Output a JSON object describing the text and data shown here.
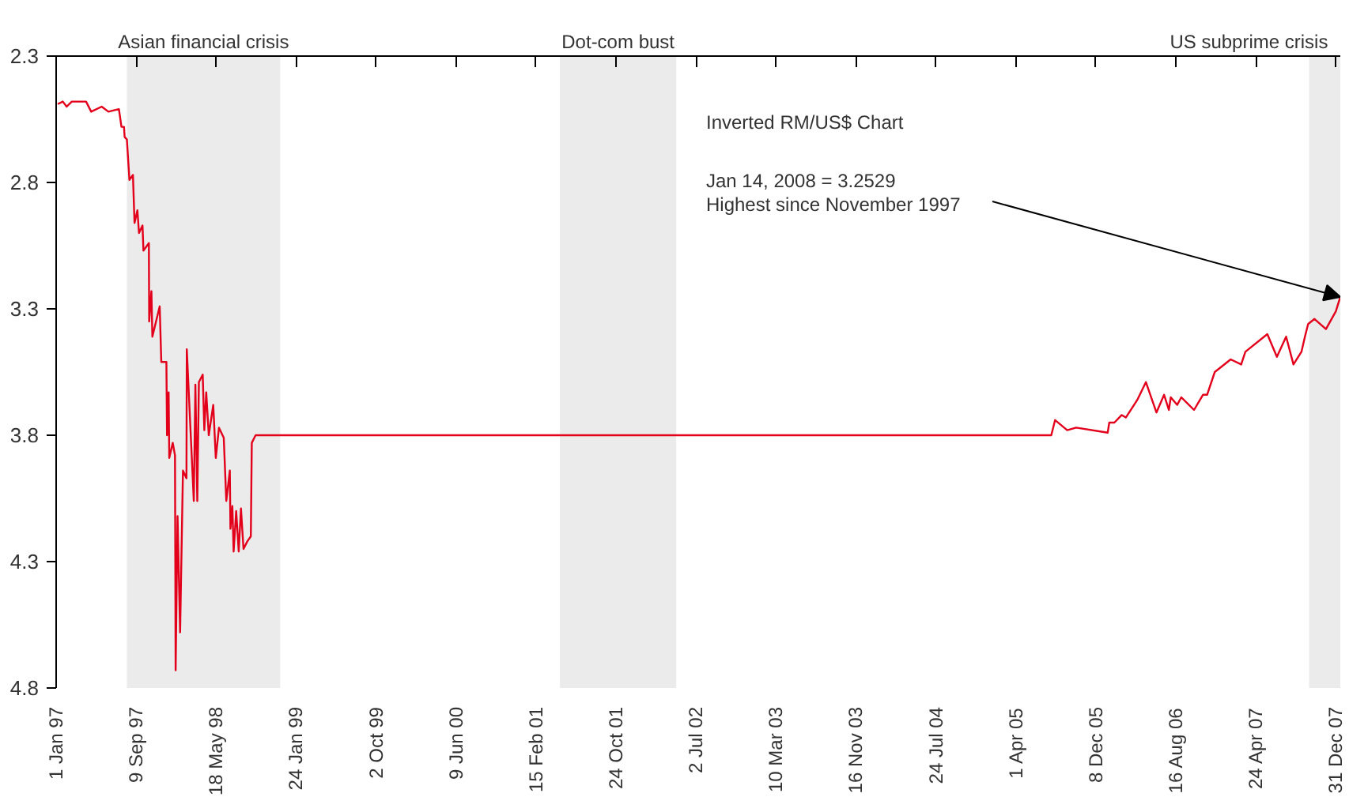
{
  "chart_data": {
    "type": "line",
    "x": [
      "1997-01-06",
      "1997-01-22",
      "1997-02-03",
      "1997-02-19",
      "1997-03-16",
      "1997-04-05",
      "1997-04-21",
      "1997-05-24",
      "1997-06-14",
      "1997-07-17",
      "1997-07-25",
      "1997-08-02",
      "1997-08-04",
      "1997-08-11",
      "1997-08-19",
      "1997-08-30",
      "1997-09-04",
      "1997-09-13",
      "1997-09-18",
      "1997-09-29",
      "1997-10-02",
      "1997-10-19",
      "1997-10-20",
      "1997-10-27",
      "1997-10-30",
      "1997-11-22",
      "1997-11-27",
      "1997-12-13",
      "1997-12-15",
      "1997-12-20",
      "1997-12-22",
      "1998-01-02",
      "1998-01-09",
      "1998-01-11",
      "1998-01-17",
      "1998-01-25",
      "1998-02-03",
      "1998-02-14",
      "1998-02-15",
      "1998-03-09",
      "1998-03-14",
      "1998-03-20",
      "1998-03-25",
      "1998-04-06",
      "1998-04-11",
      "1998-04-17",
      "1998-04-25",
      "1998-05-09",
      "1998-05-17",
      "1998-05-27",
      "1998-06-11",
      "1998-06-19",
      "1998-06-30",
      "1998-07-02",
      "1998-07-08",
      "1998-07-12",
      "1998-07-20",
      "1998-07-28",
      "1998-08-04",
      "1998-08-12",
      "1998-08-24",
      "1998-09-04",
      "1998-09-07",
      "1998-09-19",
      "2005-07-21",
      "2005-08-02",
      "2005-09-09",
      "2005-10-07",
      "2006-01-14",
      "2006-01-19",
      "2006-02-04",
      "2006-02-27",
      "2006-03-12",
      "2006-04-17",
      "2006-05-14",
      "2006-06-16",
      "2006-07-10",
      "2006-07-25",
      "2006-07-31",
      "2006-08-20",
      "2006-09-02",
      "2006-10-12",
      "2006-11-09",
      "2006-11-22",
      "2006-12-16",
      "2007-02-04",
      "2007-03-09",
      "2007-03-22",
      "2007-05-30",
      "2007-06-29",
      "2007-07-28",
      "2007-08-20",
      "2007-09-14",
      "2007-09-25",
      "2007-10-05",
      "2007-10-25",
      "2007-11-30",
      "2007-12-31",
      "2008-01-14"
    ],
    "series": [
      {
        "color": "#e3001b",
        "values": [
          2.49,
          2.48,
          2.5,
          2.48,
          2.48,
          2.48,
          2.52,
          2.5,
          2.52,
          2.51,
          2.58,
          2.58,
          2.62,
          2.63,
          2.79,
          2.77,
          2.96,
          2.91,
          3.0,
          2.97,
          3.07,
          3.04,
          3.35,
          3.23,
          3.41,
          3.29,
          3.51,
          3.51,
          3.8,
          3.63,
          3.89,
          3.83,
          3.88,
          4.73,
          4.12,
          4.58,
          3.94,
          3.97,
          3.46,
          4.06,
          3.6,
          4.06,
          3.59,
          3.56,
          3.78,
          3.63,
          3.8,
          3.68,
          3.89,
          3.77,
          3.81,
          4.06,
          3.94,
          4.17,
          4.08,
          4.26,
          4.1,
          4.26,
          4.09,
          4.25,
          4.22,
          4.2,
          3.83,
          3.8,
          3.8,
          3.74,
          3.78,
          3.77,
          3.79,
          3.75,
          3.75,
          3.72,
          3.73,
          3.66,
          3.59,
          3.71,
          3.64,
          3.7,
          3.65,
          3.68,
          3.65,
          3.7,
          3.64,
          3.64,
          3.55,
          3.5,
          3.52,
          3.47,
          3.4,
          3.49,
          3.41,
          3.52,
          3.47,
          3.41,
          3.36,
          3.34,
          3.38,
          3.31,
          3.2529
        ]
      }
    ],
    "xlim": [
      "1997-01-01",
      "2008-01-14"
    ],
    "xticks": [
      {
        "value": "1997-01-01",
        "label": "1 Jan 97"
      },
      {
        "value": "1997-09-09",
        "label": "9 Sep 97"
      },
      {
        "value": "1998-05-18",
        "label": "18 May 98"
      },
      {
        "value": "1999-01-24",
        "label": "24 Jan 99"
      },
      {
        "value": "1999-10-02",
        "label": "2 Oct 99"
      },
      {
        "value": "2000-06-09",
        "label": "9 Jun 00"
      },
      {
        "value": "2001-02-15",
        "label": "15 Feb 01"
      },
      {
        "value": "2001-10-24",
        "label": "24 Oct 01"
      },
      {
        "value": "2002-07-02",
        "label": "2 Jul 02"
      },
      {
        "value": "2003-03-10",
        "label": "10 Mar 03"
      },
      {
        "value": "2003-11-16",
        "label": "16 Nov 03"
      },
      {
        "value": "2004-07-24",
        "label": "24 Jul 04"
      },
      {
        "value": "2005-04-01",
        "label": "1 Apr 05"
      },
      {
        "value": "2005-12-08",
        "label": "8 Dec 05"
      },
      {
        "value": "2006-08-16",
        "label": "16 Aug 06"
      },
      {
        "value": "2007-04-24",
        "label": "24 Apr 07"
      },
      {
        "value": "2007-12-31",
        "label": "31 Dec 07"
      }
    ],
    "ylim": [
      4.8,
      2.3
    ],
    "yticks": [
      2.3,
      2.8,
      3.3,
      3.8,
      4.3,
      4.8
    ],
    "bands": [
      {
        "axis": "x",
        "from": "1997-08-11",
        "to": "1998-12-05",
        "label": "Asian financial crisis",
        "color": "#ebebeb"
      },
      {
        "axis": "x",
        "from": "2001-05-01",
        "to": "2002-05-01",
        "label": "Dot-com bust",
        "color": "#ebebeb"
      },
      {
        "axis": "x",
        "from": "2007-10-08",
        "to": "2008-01-14",
        "label": "US subprime crisis",
        "color": "#ebebeb"
      }
    ],
    "annotations": [
      "Inverted RM/US$ Chart",
      "Jan 14, 2008 = 3.2529\nHighest since November 1997"
    ],
    "grid": false,
    "marker": "none",
    "line_style": "solid"
  }
}
